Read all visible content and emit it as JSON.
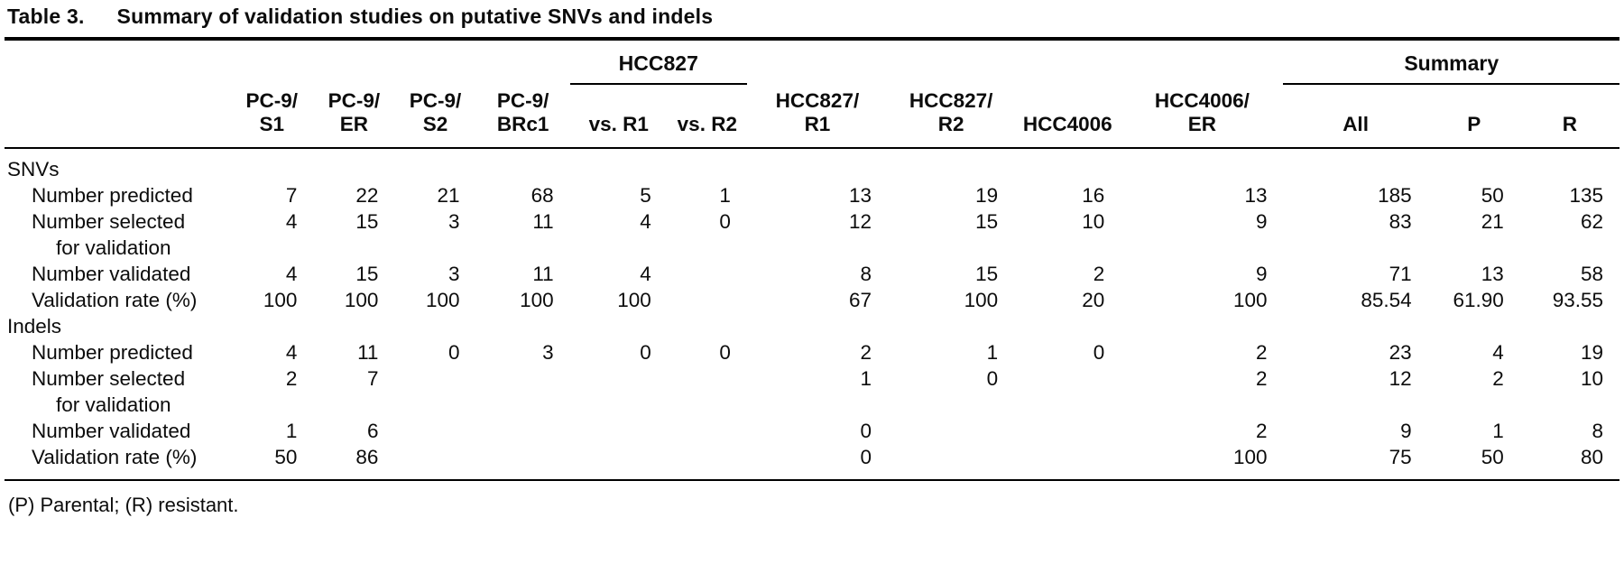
{
  "title": {
    "label": "Table 3.",
    "text": "Summary of validation studies on putative SNVs and indels"
  },
  "table": {
    "group_headers": [
      {
        "label": "HCC827",
        "span": 2,
        "start": 4
      },
      {
        "label": "Summary",
        "span": 3,
        "start": 10
      }
    ],
    "columns": [
      {
        "lines": [
          "PC-9/",
          "S1"
        ]
      },
      {
        "lines": [
          "PC-9/",
          "ER"
        ]
      },
      {
        "lines": [
          "PC-9/",
          "S2"
        ]
      },
      {
        "lines": [
          "PC-9/",
          "BRc1"
        ]
      },
      {
        "lines": [
          "vs. R1"
        ]
      },
      {
        "lines": [
          "vs. R2"
        ]
      },
      {
        "lines": [
          "HCC827/",
          "R1"
        ]
      },
      {
        "lines": [
          "HCC827/",
          "R2"
        ]
      },
      {
        "lines": [
          "HCC4006"
        ]
      },
      {
        "lines": [
          "HCC4006/",
          "ER"
        ]
      },
      {
        "lines": [
          "All"
        ]
      },
      {
        "lines": [
          "P"
        ]
      },
      {
        "lines": [
          "R"
        ]
      }
    ],
    "sections": [
      {
        "name": "SNVs",
        "rows": [
          {
            "label": "Number predicted",
            "label2": "",
            "values": [
              "7",
              "22",
              "21",
              "68",
              "5",
              "1",
              "13",
              "19",
              "16",
              "13",
              "185",
              "50",
              "135"
            ]
          },
          {
            "label": "Number selected",
            "label2": "for validation",
            "values": [
              "4",
              "15",
              "3",
              "11",
              "4",
              "0",
              "12",
              "15",
              "10",
              "9",
              "83",
              "21",
              "62"
            ]
          },
          {
            "label": "Number validated",
            "label2": "",
            "values": [
              "4",
              "15",
              "3",
              "11",
              "4",
              "",
              "8",
              "15",
              "2",
              "9",
              "71",
              "13",
              "58"
            ]
          },
          {
            "label": "Validation rate (%)",
            "label2": "",
            "values": [
              "100",
              "100",
              "100",
              "100",
              "100",
              "",
              "67",
              "100",
              "20",
              "100",
              "85.54",
              "61.90",
              "93.55"
            ]
          }
        ]
      },
      {
        "name": "Indels",
        "rows": [
          {
            "label": "Number predicted",
            "label2": "",
            "values": [
              "4",
              "11",
              "0",
              "3",
              "0",
              "0",
              "2",
              "1",
              "0",
              "2",
              "23",
              "4",
              "19"
            ]
          },
          {
            "label": "Number selected",
            "label2": "for validation",
            "values": [
              "2",
              "7",
              "",
              "",
              "",
              "",
              "1",
              "0",
              "",
              "2",
              "12",
              "2",
              "10"
            ]
          },
          {
            "label": "Number validated",
            "label2": "",
            "values": [
              "1",
              "6",
              "",
              "",
              "",
              "",
              "0",
              "",
              "",
              "2",
              "9",
              "1",
              "8"
            ]
          },
          {
            "label": "Validation rate (%)",
            "label2": "",
            "values": [
              "50",
              "86",
              "",
              "",
              "",
              "",
              "0",
              "",
              "",
              "100",
              "75",
              "50",
              "80"
            ]
          }
        ]
      }
    ]
  },
  "footnote": "(P) Parental; (R) resistant."
}
